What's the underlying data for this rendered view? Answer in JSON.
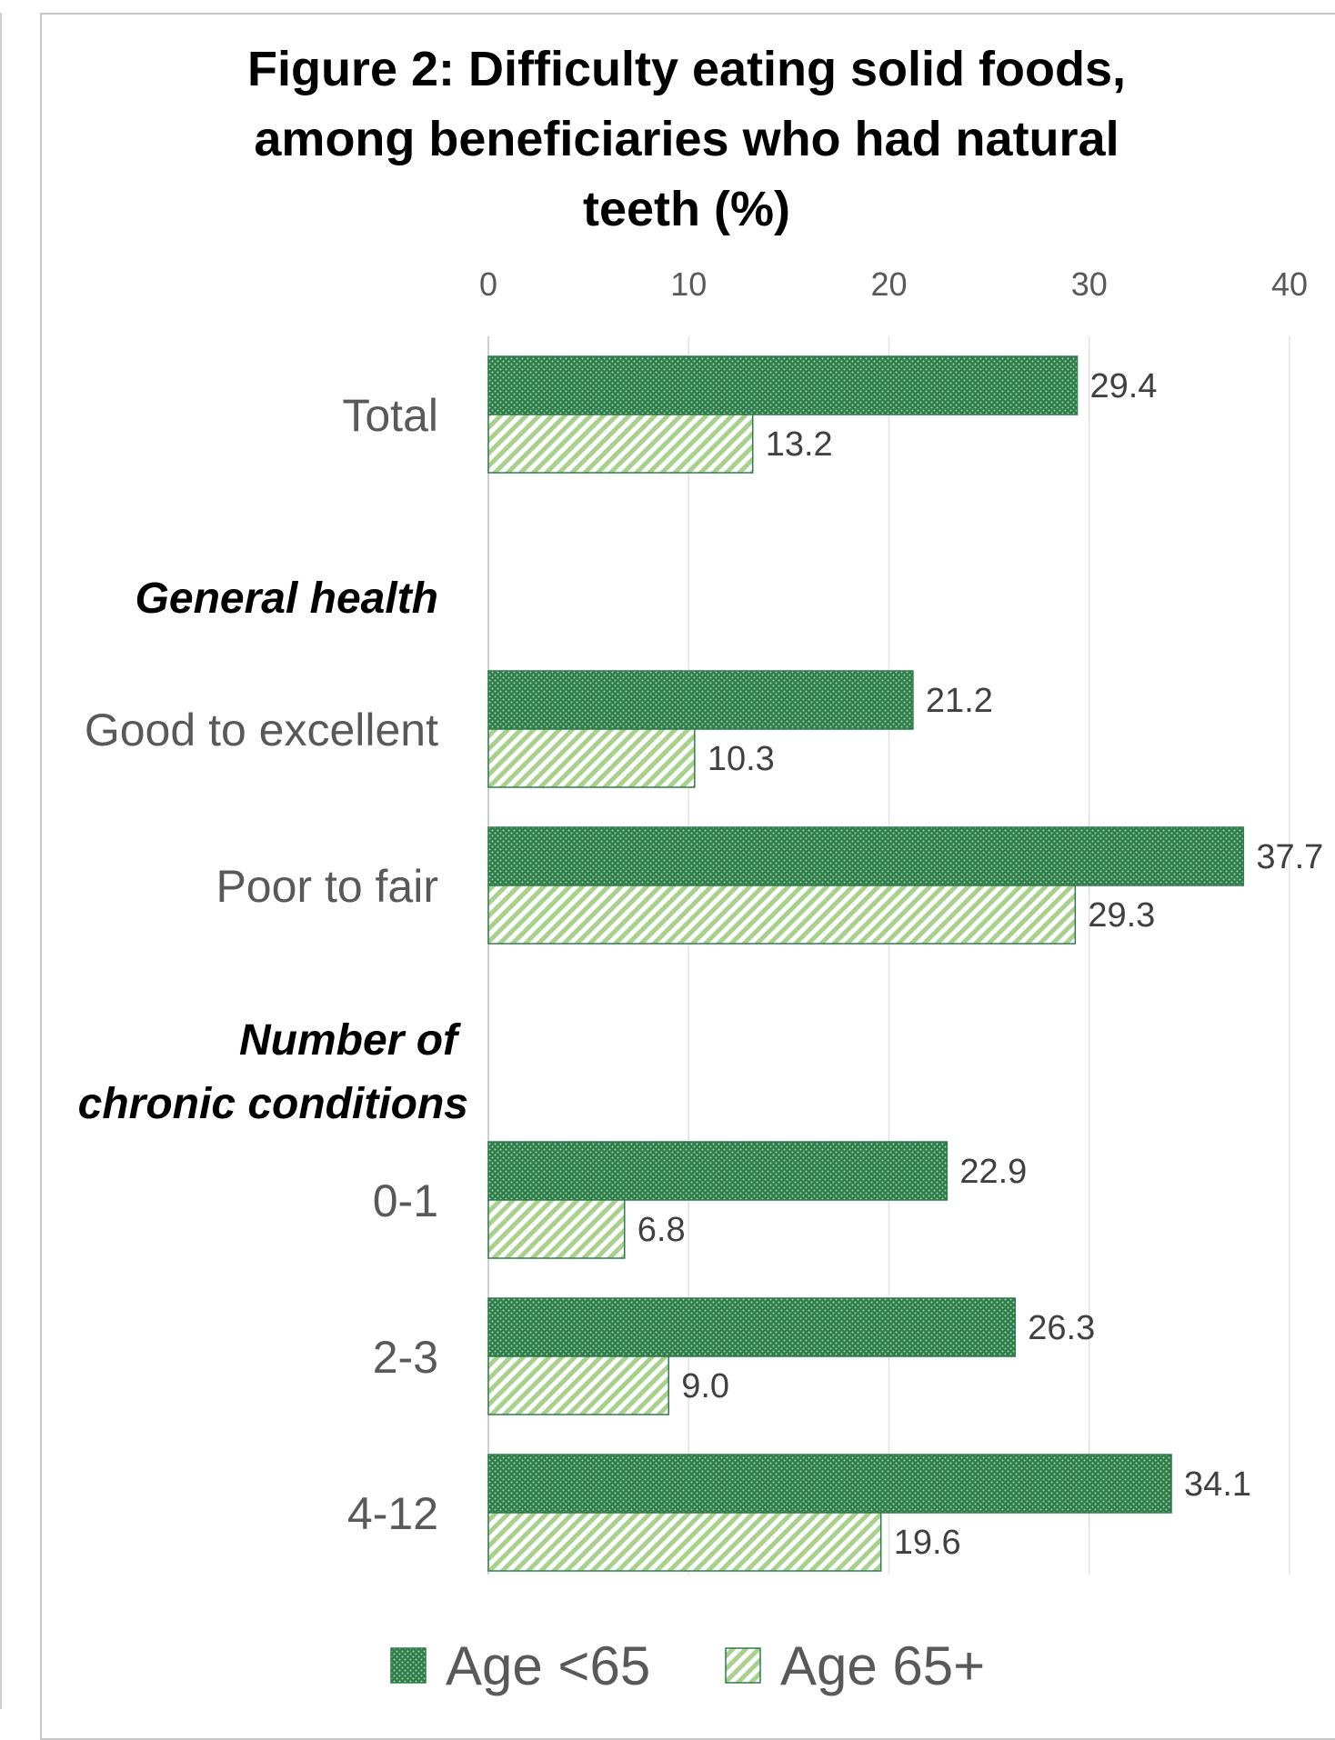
{
  "chart_data": {
    "type": "bar",
    "orientation": "horizontal",
    "title": "Figure 2: Difficulty eating solid foods,\namong beneficiaries who had natural\nteeth (%)",
    "xlim": [
      0,
      40
    ],
    "x_ticks": [
      "0",
      "10",
      "20",
      "30",
      "40"
    ],
    "grid": true,
    "legend_position": "bottom",
    "categories": [
      "Total",
      "Good to excellent",
      "Poor to fair",
      "0-1",
      "2-3",
      "4-12"
    ],
    "group_headers": [
      "General health",
      "Number of chronic conditions"
    ],
    "series": [
      {
        "name": "Age <65",
        "values": [
          29.4,
          21.2,
          37.7,
          22.9,
          26.3,
          34.1
        ],
        "labels": [
          "29.4",
          "21.2",
          "37.7",
          "22.9",
          "26.3",
          "34.1"
        ],
        "color": "#2e7d4a",
        "pattern": "dotted"
      },
      {
        "name": "Age 65+",
        "values": [
          13.2,
          10.3,
          29.3,
          6.8,
          9.0,
          19.6
        ],
        "labels": [
          "13.2",
          "10.3",
          "29.3",
          "6.8",
          "9.0",
          "19.6"
        ],
        "color": "#a9d18e",
        "pattern": "diagonal-stripes"
      }
    ]
  }
}
